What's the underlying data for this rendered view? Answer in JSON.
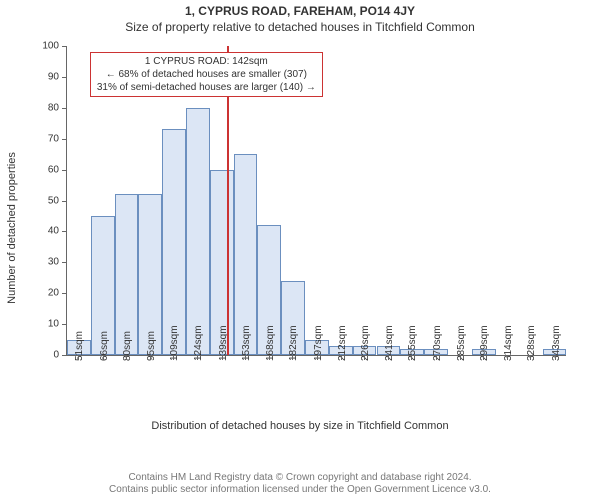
{
  "title": "1, CYPRUS ROAD, FAREHAM, PO14 4JY",
  "subtitle": "Size of property relative to detached houses in Titchfield Common",
  "xaxis_title": "Distribution of detached houses by size in Titchfield Common",
  "yaxis_title": "Number of detached properties",
  "footer": {
    "line1": "Contains HM Land Registry data © Crown copyright and database right 2024.",
    "line2": "Contains public sector information licensed under the Open Government Licence v3.0."
  },
  "annotation": {
    "line1": "1 CYPRUS ROAD: 142sqm",
    "line2": "← 68% of detached houses are smaller (307)",
    "line3": "31% of semi-detached houses are larger (140) →"
  },
  "chart": {
    "type": "histogram",
    "background_color": "#ffffff",
    "axis_color": "#666666",
    "bar_fill": "#dce6f5",
    "bar_border": "#6b8fbf",
    "marker_color": "#cc3333",
    "annotation_border": "#cc3333",
    "ylim": [
      0,
      100
    ],
    "ytick_step": 10,
    "xlim": [
      44,
      350
    ],
    "marker_x": 142,
    "label_fontsize": 11,
    "tick_fontsize": 10,
    "title_fontsize": 12,
    "x_ticks": [
      51,
      66,
      80,
      95,
      109,
      124,
      139,
      153,
      168,
      182,
      197,
      212,
      226,
      241,
      255,
      270,
      285,
      299,
      314,
      328,
      343
    ],
    "x_tick_suffix": "sqm",
    "bars": [
      {
        "x0": 44,
        "x1": 58.6,
        "y": 5
      },
      {
        "x0": 58.6,
        "x1": 73.2,
        "y": 45
      },
      {
        "x0": 73.2,
        "x1": 87.8,
        "y": 52
      },
      {
        "x0": 87.8,
        "x1": 102.4,
        "y": 52
      },
      {
        "x0": 102.4,
        "x1": 117,
        "y": 73
      },
      {
        "x0": 117,
        "x1": 131.6,
        "y": 80
      },
      {
        "x0": 131.6,
        "x1": 146.2,
        "y": 60
      },
      {
        "x0": 146.2,
        "x1": 160.8,
        "y": 65
      },
      {
        "x0": 160.8,
        "x1": 175.4,
        "y": 42
      },
      {
        "x0": 175.4,
        "x1": 190,
        "y": 24
      },
      {
        "x0": 190,
        "x1": 204.6,
        "y": 5
      },
      {
        "x0": 204.6,
        "x1": 219.2,
        "y": 3
      },
      {
        "x0": 219.2,
        "x1": 233.8,
        "y": 3
      },
      {
        "x0": 233.8,
        "x1": 248.4,
        "y": 3
      },
      {
        "x0": 248.4,
        "x1": 263,
        "y": 2
      },
      {
        "x0": 263,
        "x1": 277.6,
        "y": 2
      },
      {
        "x0": 277.6,
        "x1": 292.2,
        "y": 0
      },
      {
        "x0": 292.2,
        "x1": 306.8,
        "y": 2
      },
      {
        "x0": 306.8,
        "x1": 321.4,
        "y": 0
      },
      {
        "x0": 321.4,
        "x1": 336,
        "y": 0
      },
      {
        "x0": 336,
        "x1": 350,
        "y": 2
      }
    ]
  }
}
